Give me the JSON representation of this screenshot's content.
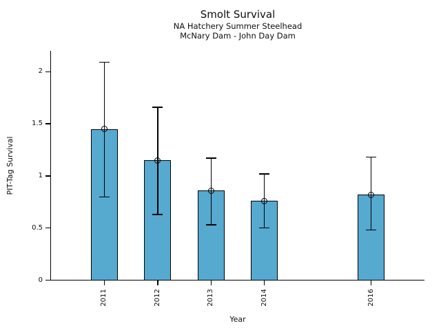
{
  "figure": {
    "title": "Smolt Survival",
    "subtitle_line1": "NA Hatchery Summer Steelhead",
    "subtitle_line2": "McNary Dam - John Day Dam"
  },
  "chart_data": {
    "type": "bar",
    "title": "Smolt Survival",
    "subtitle": [
      "NA Hatchery Summer Steelhead",
      "McNary Dam - John Day Dam"
    ],
    "xlabel": "Year",
    "ylabel": "PIT-Tag Survival",
    "categories": [
      2011,
      2012,
      2013,
      2014,
      2016
    ],
    "values": [
      1.45,
      1.15,
      0.86,
      0.76,
      0.82
    ],
    "error_low": [
      0.8,
      0.63,
      0.53,
      0.5,
      0.48
    ],
    "error_high": [
      2.09,
      1.66,
      1.17,
      1.02,
      1.18
    ],
    "yticks": [
      0,
      0.5,
      1,
      1.5,
      2
    ],
    "ylim": [
      0,
      2.2
    ],
    "xlim": [
      2010,
      2017
    ],
    "grid": false,
    "legend": null,
    "marker": "open-circle",
    "bar_color": "#56A9CF",
    "bar_edge_color": "#000000",
    "text_color": "#0d0d0d"
  }
}
